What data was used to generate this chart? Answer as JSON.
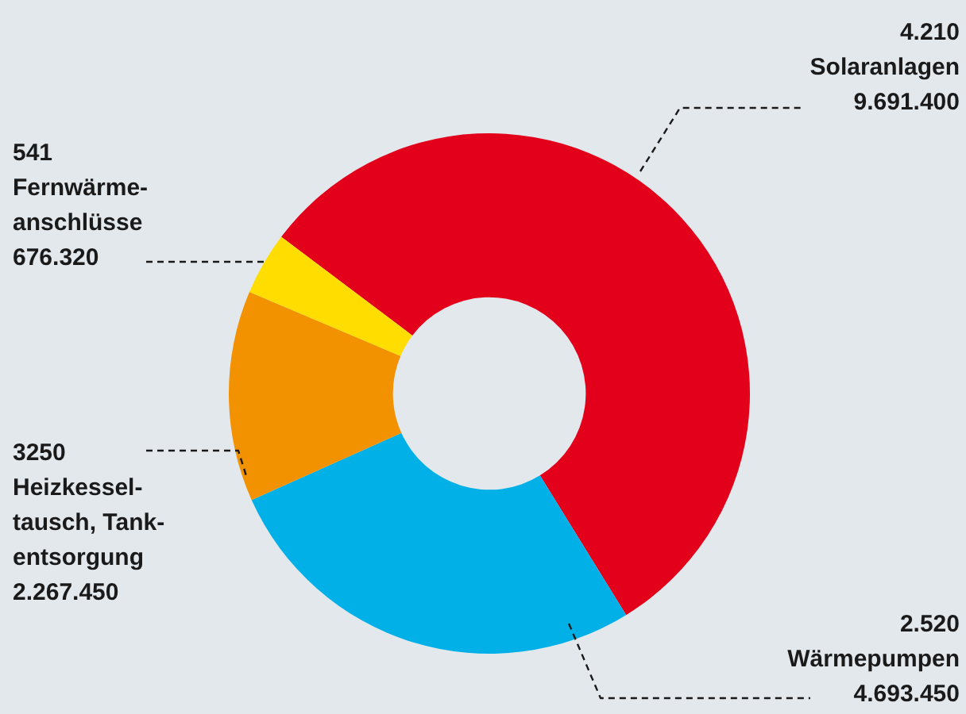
{
  "chart_data": {
    "type": "donut",
    "categories": [
      "Solaranlagen",
      "Wärmepumpen",
      "Heizkessel-\ntausch, Tank-\nentsorgung",
      "Fernwärme-\nanschlüsse"
    ],
    "values": [
      9691400,
      4693450,
      2267450,
      676320
    ],
    "value_labels": [
      "9.691.400",
      "4.693.450",
      "2.267.450",
      "676.320"
    ],
    "colors": [
      "#e2001a",
      "#00b0e6",
      "#f39200",
      "#ffdd00"
    ],
    "annotations": [
      "4.210",
      "2.520",
      "3250",
      "541"
    ]
  }
}
